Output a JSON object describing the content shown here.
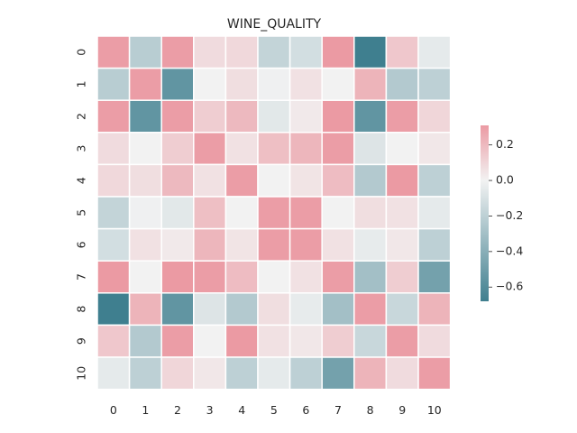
{
  "chart_data": {
    "type": "heatmap",
    "title": "WINE_QUALITY",
    "x_labels": [
      "0",
      "1",
      "2",
      "3",
      "4",
      "5",
      "6",
      "7",
      "8",
      "9",
      "10"
    ],
    "y_labels": [
      "0",
      "1",
      "2",
      "3",
      "4",
      "5",
      "6",
      "7",
      "8",
      "9",
      "10"
    ],
    "values": [
      [
        0.3,
        -0.22,
        0.3,
        0.08,
        0.09,
        -0.18,
        -0.12,
        0.31,
        -0.68,
        0.15,
        -0.05
      ],
      [
        -0.22,
        0.3,
        -0.55,
        0.0,
        0.07,
        -0.01,
        0.06,
        0.0,
        0.22,
        -0.24,
        -0.2
      ],
      [
        0.3,
        -0.55,
        0.3,
        0.13,
        0.2,
        -0.06,
        0.03,
        0.31,
        -0.55,
        0.3,
        0.1
      ],
      [
        0.08,
        0.0,
        0.13,
        0.3,
        0.06,
        0.18,
        0.21,
        0.3,
        -0.08,
        0.0,
        0.04
      ],
      [
        0.09,
        0.07,
        0.2,
        0.06,
        0.3,
        0.0,
        0.05,
        0.19,
        -0.24,
        0.31,
        -0.2
      ],
      [
        -0.18,
        -0.01,
        -0.06,
        0.18,
        0.0,
        0.3,
        0.3,
        0.0,
        0.07,
        0.06,
        -0.05
      ],
      [
        -0.12,
        0.06,
        0.03,
        0.21,
        0.05,
        0.3,
        0.3,
        0.06,
        -0.04,
        0.04,
        -0.2
      ],
      [
        0.31,
        0.0,
        0.31,
        0.3,
        0.19,
        0.0,
        0.06,
        0.3,
        -0.3,
        0.13,
        -0.48
      ],
      [
        -0.68,
        0.22,
        -0.55,
        -0.08,
        -0.24,
        0.07,
        -0.04,
        -0.3,
        0.3,
        -0.16,
        0.22
      ],
      [
        0.15,
        -0.24,
        0.3,
        0.0,
        0.31,
        0.06,
        0.04,
        0.13,
        -0.16,
        0.3,
        0.08
      ],
      [
        -0.05,
        -0.2,
        0.1,
        0.04,
        -0.2,
        -0.05,
        -0.2,
        -0.48,
        0.22,
        0.08,
        0.3
      ]
    ],
    "colorbar": {
      "vmin": -0.68,
      "vmax": 0.31,
      "ticks": [
        0.2,
        0.0,
        -0.2,
        -0.4,
        -0.6
      ],
      "tick_labels": [
        "0.2",
        "0.0",
        "−0.2",
        "−0.4",
        "−0.6"
      ]
    },
    "colors": {
      "negative": "#3f7f8f",
      "center": "#f2f2f2",
      "positive": "#eb9aa3",
      "cell_border": "#ffffff"
    }
  }
}
